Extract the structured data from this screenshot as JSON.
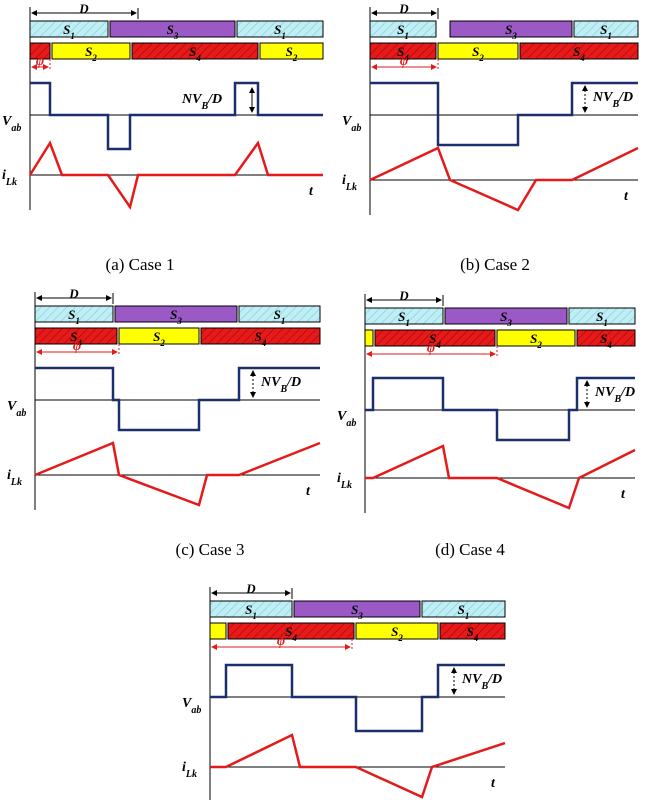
{
  "labels": {
    "D": "D",
    "phi": "φ",
    "vab": "V",
    "vab_sub": "ab",
    "ilk": "i",
    "ilk_sub": "Lk",
    "t": "t",
    "nvb_main": "NV",
    "nvb_sub": "B",
    "nvb_tail": "/D",
    "s1": "S",
    "s1_sub": "1",
    "s2": "S",
    "s2_sub": "2",
    "s3": "S",
    "s3_sub": "3",
    "s4": "S",
    "s4_sub": "4"
  },
  "colors": {
    "s1": "#bfeff5",
    "s3": "#9b59c6",
    "s2": "#ffff00",
    "s4": "#e51a1a",
    "vab_wave": "#1a2f6b",
    "ilk_wave": "#e51a1a"
  },
  "panels": [
    {
      "caption": "(a) Case 1"
    },
    {
      "caption": "(b) Case 2"
    },
    {
      "caption": "(c) Case 3"
    },
    {
      "caption": "(d) Case 4"
    },
    {
      "caption": ""
    }
  ]
}
